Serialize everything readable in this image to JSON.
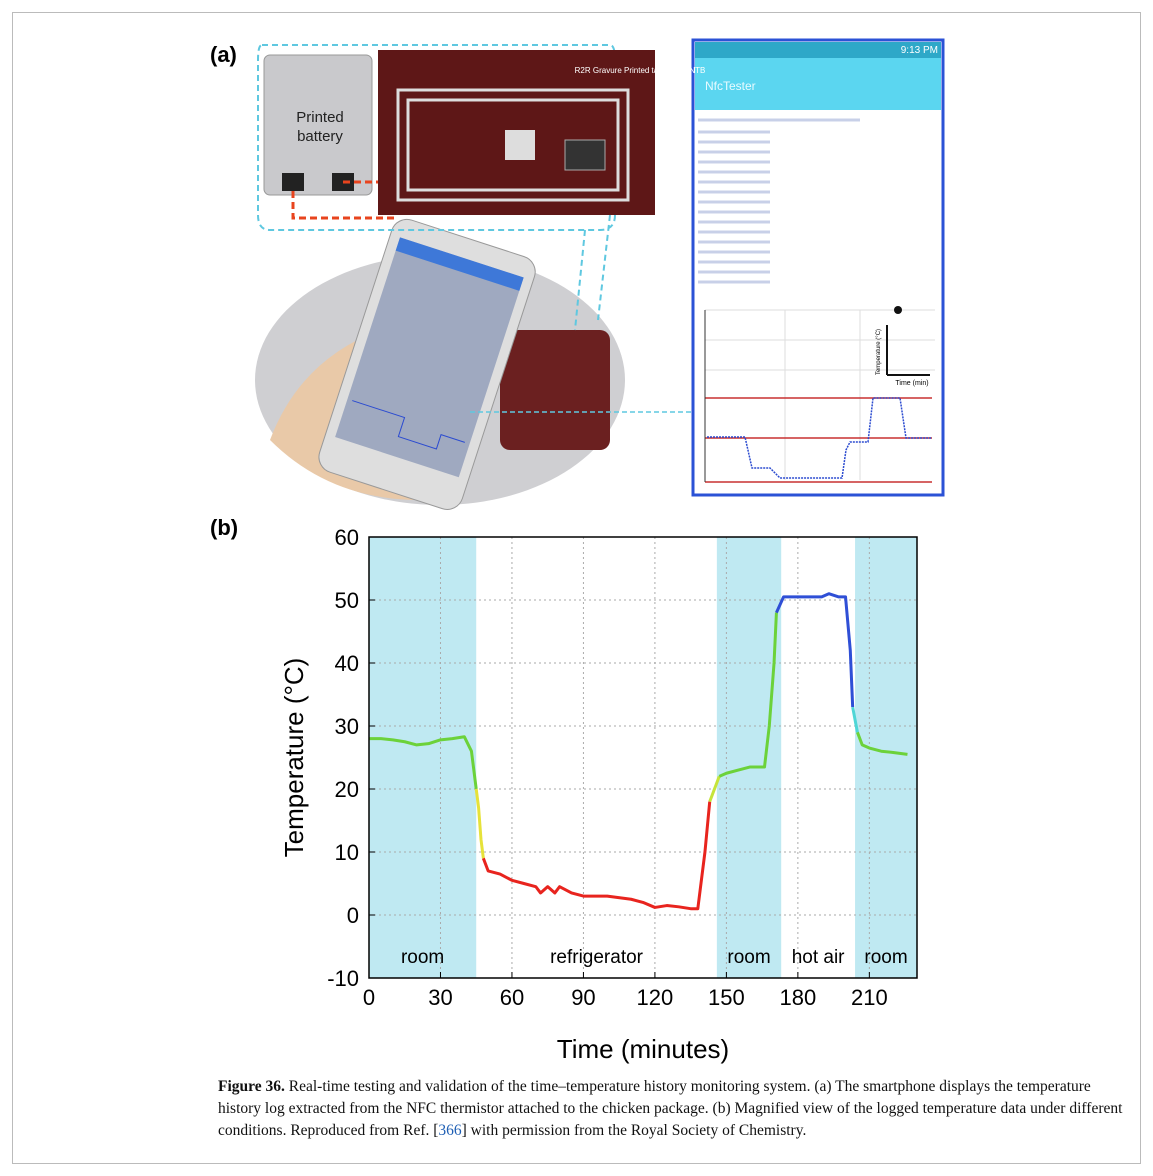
{
  "panel_a": {
    "label": "(a)",
    "battery_text": "Printed battery",
    "tag_text": "R2R Gravure Printed tag LSF_ANTB",
    "phone_time": "9:13 PM",
    "app_title": "NfcTester",
    "mini_y_label": "Temperature (°C)",
    "mini_x_label": "Time (min)"
  },
  "panel_b_label": "(b)",
  "chart_data": {
    "type": "line",
    "xlabel": "Time (minutes)",
    "ylabel": "Temperature (°C)",
    "xlim": [
      0,
      230
    ],
    "xticks": [
      0,
      30,
      60,
      90,
      120,
      150,
      180,
      210
    ],
    "ylim": [
      -10,
      60
    ],
    "yticks": [
      -10,
      0,
      10,
      20,
      30,
      40,
      50,
      60
    ],
    "grid": true,
    "shade_color": "#bfe9f2",
    "regions": [
      {
        "x": [
          0,
          45
        ],
        "label": "room",
        "shaded": true
      },
      {
        "x": [
          45,
          146
        ],
        "label": "refrigerator",
        "shaded": false
      },
      {
        "x": [
          146,
          173
        ],
        "label": "room",
        "shaded": true
      },
      {
        "x": [
          173,
          204
        ],
        "label": "hot air",
        "shaded": false
      },
      {
        "x": [
          204,
          230
        ],
        "label": "room",
        "shaded": true
      }
    ],
    "series": [
      {
        "color": "#6cd23a",
        "x": [
          0,
          5,
          10,
          15,
          20,
          25,
          30,
          35,
          40,
          43,
          45
        ],
        "values": [
          28,
          28,
          27.8,
          27.5,
          27,
          27.2,
          27.8,
          28,
          28.3,
          26,
          20
        ]
      },
      {
        "color": "#e6e23a",
        "x": [
          45,
          46,
          47,
          48
        ],
        "values": [
          20,
          17,
          12,
          9
        ]
      },
      {
        "color": "#e8241e",
        "x": [
          48,
          50,
          55,
          60,
          65,
          70,
          72,
          75,
          78,
          80,
          85,
          90,
          100,
          110,
          115,
          120,
          125,
          130,
          135,
          138,
          141,
          143
        ],
        "values": [
          9,
          7,
          6.5,
          5.5,
          5,
          4.5,
          3.5,
          4.5,
          3.5,
          4.5,
          3.5,
          3,
          3,
          2.5,
          2,
          1.2,
          1.5,
          1.3,
          1,
          1,
          10,
          18
        ]
      },
      {
        "color": "#c6e43a",
        "x": [
          143,
          145,
          147
        ],
        "values": [
          18,
          20,
          22
        ]
      },
      {
        "color": "#6cd23a",
        "x": [
          147,
          150,
          155,
          160,
          166,
          168,
          170,
          171
        ],
        "values": [
          22,
          22.5,
          23,
          23.5,
          23.5,
          30,
          40,
          48
        ]
      },
      {
        "color": "#2f4fd6",
        "x": [
          171,
          174,
          180,
          190,
          193,
          197,
          200,
          202,
          203
        ],
        "values": [
          48,
          50.5,
          50.5,
          50.5,
          51,
          50.5,
          50.5,
          42,
          33
        ]
      },
      {
        "color": "#4fd6d6",
        "x": [
          203,
          205
        ],
        "values": [
          33,
          29
        ]
      },
      {
        "color": "#6cd23a",
        "x": [
          205,
          207,
          210,
          215,
          220,
          226
        ],
        "values": [
          29,
          27,
          26.5,
          26,
          25.8,
          25.5
        ]
      }
    ]
  },
  "caption": {
    "label": "Figure 36.",
    "text_before": " Real-time testing and validation of the time–temperature history monitoring system. (a) The smartphone displays the temperature history log extracted from the NFC thermistor attached to the chicken package. (b) Magnified view of the logged temperature data under different conditions. Reproduced from Ref. [",
    "ref": "366",
    "text_after": "] with permission from the Royal Society of Chemistry."
  }
}
